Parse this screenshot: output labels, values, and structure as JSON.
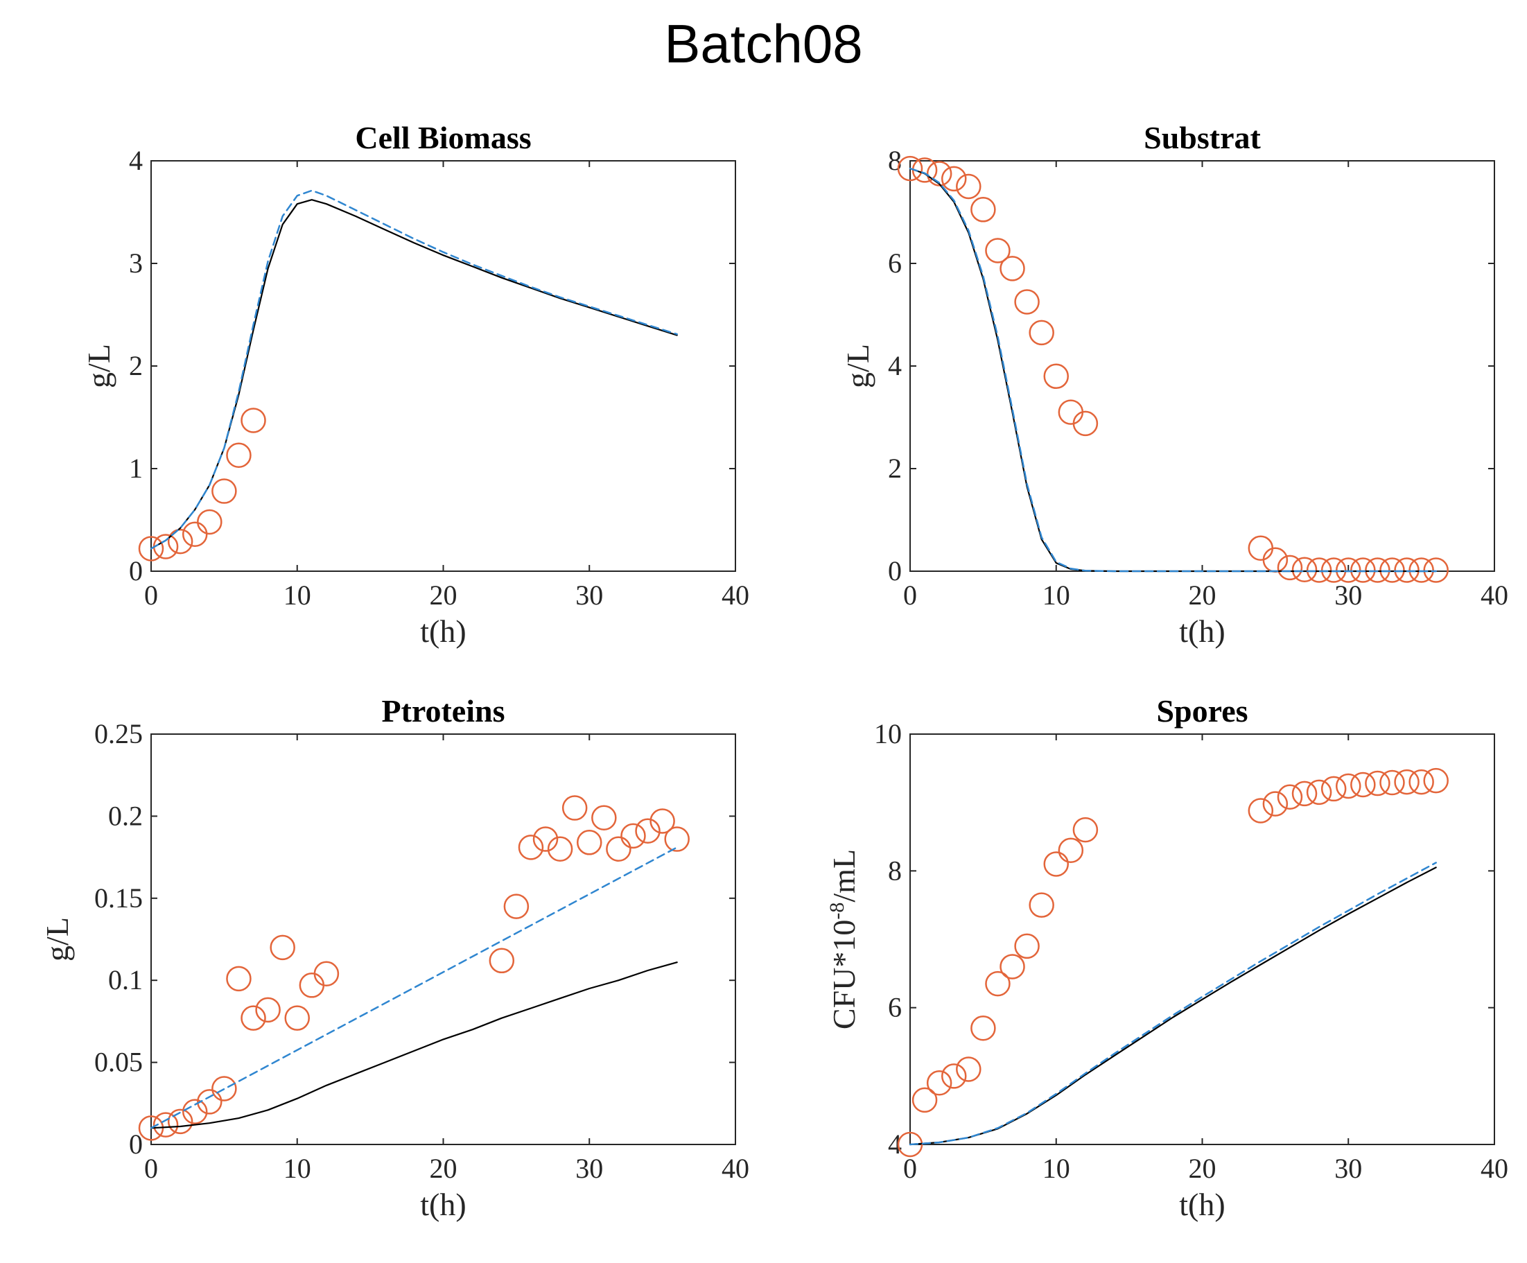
{
  "figure": {
    "title": "Batch08"
  },
  "style": {
    "observed_color": "#e3653a",
    "model_solid_color": "#000000",
    "model_dashed_color": "#2f86d0",
    "axis_color": "#262626"
  },
  "chart_data": [
    {
      "type": "line",
      "title": "Cell Biomass",
      "xlabel": "t(h)",
      "ylabel": "g/L",
      "xlim": [
        0,
        40
      ],
      "ylim": [
        0,
        4
      ],
      "xticks": [
        0,
        10,
        20,
        30,
        40
      ],
      "yticks": [
        0,
        1,
        2,
        3,
        4
      ],
      "ytick_labels": [
        "0",
        "1",
        "2",
        "3",
        "4"
      ],
      "grid": false,
      "legend": "none",
      "series": [
        {
          "style": "markers",
          "x": [
            0,
            1,
            2,
            3,
            4,
            5,
            6,
            7
          ],
          "y": [
            0.22,
            0.24,
            0.29,
            0.36,
            0.48,
            0.78,
            1.13,
            1.47
          ]
        },
        {
          "style": "solid",
          "x": [
            0,
            1,
            2,
            3,
            4,
            5,
            6,
            7,
            8,
            9,
            10,
            11,
            12,
            14,
            16,
            18,
            20,
            22,
            24,
            26,
            28,
            30,
            32,
            34,
            36
          ],
          "y": [
            0.22,
            0.3,
            0.42,
            0.6,
            0.84,
            1.2,
            1.72,
            2.35,
            2.95,
            3.38,
            3.58,
            3.62,
            3.58,
            3.46,
            3.33,
            3.2,
            3.08,
            2.97,
            2.86,
            2.76,
            2.66,
            2.57,
            2.48,
            2.39,
            2.3
          ]
        },
        {
          "style": "dashed",
          "x": [
            0,
            1,
            2,
            3,
            4,
            5,
            6,
            7,
            8,
            9,
            10,
            11,
            12,
            14,
            16,
            18,
            20,
            22,
            24,
            26,
            28,
            30,
            32,
            34,
            36
          ],
          "y": [
            0.22,
            0.3,
            0.42,
            0.6,
            0.84,
            1.2,
            1.75,
            2.4,
            3.02,
            3.46,
            3.66,
            3.71,
            3.66,
            3.52,
            3.38,
            3.24,
            3.11,
            2.99,
            2.88,
            2.77,
            2.67,
            2.58,
            2.49,
            2.4,
            2.31
          ]
        }
      ]
    },
    {
      "type": "line",
      "title": "Substrat",
      "xlabel": "t(h)",
      "ylabel": "g/L",
      "xlim": [
        0,
        40
      ],
      "ylim": [
        0,
        8
      ],
      "xticks": [
        0,
        10,
        20,
        30,
        40
      ],
      "yticks": [
        0,
        2,
        4,
        6,
        8
      ],
      "ytick_labels": [
        "0",
        "2",
        "4",
        "6",
        "8"
      ],
      "grid": false,
      "legend": "none",
      "series": [
        {
          "style": "markers",
          "x": [
            0,
            1,
            2,
            3,
            4,
            5,
            6,
            7,
            8,
            9,
            10,
            11,
            12,
            24,
            25,
            26,
            27,
            28,
            29,
            30,
            31,
            32,
            33,
            34,
            35,
            36
          ],
          "y": [
            7.85,
            7.82,
            7.75,
            7.65,
            7.5,
            7.05,
            6.25,
            5.9,
            5.25,
            4.65,
            3.8,
            3.1,
            2.88,
            0.45,
            0.22,
            0.07,
            0.03,
            0.02,
            0.02,
            0.02,
            0.02,
            0.02,
            0.02,
            0.02,
            0.02,
            0.02
          ]
        },
        {
          "style": "solid",
          "x": [
            0,
            1,
            2,
            3,
            4,
            5,
            6,
            7,
            8,
            9,
            10,
            11,
            12,
            14,
            16,
            20,
            24,
            28,
            32,
            36
          ],
          "y": [
            7.85,
            7.75,
            7.55,
            7.2,
            6.6,
            5.7,
            4.5,
            3.1,
            1.65,
            0.62,
            0.16,
            0.04,
            0.01,
            0.0,
            0.0,
            0.0,
            0.0,
            0.0,
            0.0,
            0.0
          ]
        },
        {
          "style": "dashed",
          "x": [
            0,
            1,
            2,
            3,
            4,
            5,
            6,
            7,
            8,
            9,
            10,
            11,
            12,
            14,
            16,
            20,
            24,
            28,
            32,
            36
          ],
          "y": [
            7.85,
            7.76,
            7.57,
            7.23,
            6.64,
            5.75,
            4.57,
            3.16,
            1.7,
            0.66,
            0.18,
            0.05,
            0.01,
            0.0,
            0.0,
            0.0,
            0.0,
            0.0,
            0.0,
            0.0
          ]
        }
      ]
    },
    {
      "type": "line",
      "title": "Ptroteins",
      "xlabel": "t(h)",
      "ylabel": "g/L",
      "xlim": [
        0,
        40
      ],
      "ylim": [
        0,
        0.25
      ],
      "xticks": [
        0,
        10,
        20,
        30,
        40
      ],
      "yticks": [
        0,
        0.05,
        0.1,
        0.15,
        0.2,
        0.25
      ],
      "ytick_labels": [
        "0",
        "0.05",
        "0.1",
        "0.15",
        "0.2",
        "0.25"
      ],
      "grid": false,
      "legend": "none",
      "series": [
        {
          "style": "markers",
          "x": [
            0,
            1,
            2,
            3,
            4,
            5,
            6,
            7,
            8,
            9,
            10,
            11,
            12,
            24,
            25,
            26,
            27,
            28,
            29,
            30,
            31,
            32,
            33,
            34,
            35,
            36
          ],
          "y": [
            0.01,
            0.012,
            0.014,
            0.02,
            0.026,
            0.034,
            0.101,
            0.077,
            0.082,
            0.12,
            0.077,
            0.097,
            0.104,
            0.112,
            0.145,
            0.181,
            0.186,
            0.18,
            0.205,
            0.184,
            0.199,
            0.18,
            0.188,
            0.191,
            0.197,
            0.186
          ]
        },
        {
          "style": "solid",
          "x": [
            0,
            2,
            4,
            6,
            8,
            10,
            12,
            14,
            16,
            18,
            20,
            22,
            24,
            26,
            28,
            30,
            32,
            34,
            36
          ],
          "y": [
            0.01,
            0.011,
            0.013,
            0.016,
            0.021,
            0.028,
            0.036,
            0.043,
            0.05,
            0.057,
            0.064,
            0.07,
            0.077,
            0.083,
            0.089,
            0.095,
            0.1,
            0.106,
            0.111
          ]
        },
        {
          "style": "dashed",
          "x": [
            0,
            36
          ],
          "y": [
            0.01,
            0.181
          ]
        }
      ]
    },
    {
      "type": "line",
      "title": "Spores",
      "xlabel": "t(h)",
      "ylabel": "CFU*10-8/mL",
      "ylabel_parts": [
        "CFU*10",
        "-8",
        "/mL"
      ],
      "xlim": [
        0,
        40
      ],
      "ylim": [
        4,
        10
      ],
      "xticks": [
        0,
        10,
        20,
        30,
        40
      ],
      "yticks": [
        4,
        6,
        8,
        10
      ],
      "ytick_labels": [
        "4",
        "6",
        "8",
        "10"
      ],
      "grid": false,
      "legend": "none",
      "series": [
        {
          "style": "markers",
          "x": [
            0,
            1,
            2,
            3,
            4,
            5,
            6,
            7,
            8,
            9,
            10,
            11,
            12,
            24,
            25,
            26,
            27,
            28,
            29,
            30,
            31,
            32,
            33,
            34,
            35,
            36
          ],
          "y": [
            4.0,
            4.65,
            4.9,
            5.0,
            5.1,
            5.7,
            6.35,
            6.6,
            6.9,
            7.5,
            8.1,
            8.3,
            8.6,
            8.88,
            8.98,
            9.08,
            9.13,
            9.15,
            9.2,
            9.24,
            9.26,
            9.28,
            9.29,
            9.3,
            9.3,
            9.32
          ]
        },
        {
          "style": "solid",
          "x": [
            0,
            2,
            4,
            6,
            8,
            10,
            12,
            14,
            16,
            18,
            20,
            22,
            24,
            26,
            28,
            30,
            32,
            34,
            36
          ],
          "y": [
            4.0,
            4.03,
            4.1,
            4.23,
            4.45,
            4.72,
            5.02,
            5.3,
            5.58,
            5.86,
            6.12,
            6.38,
            6.63,
            6.88,
            7.13,
            7.37,
            7.6,
            7.83,
            8.05
          ]
        },
        {
          "style": "dashed",
          "x": [
            0,
            2,
            4,
            6,
            8,
            10,
            12,
            14,
            16,
            18,
            20,
            22,
            24,
            26,
            28,
            30,
            32,
            34,
            36
          ],
          "y": [
            4.0,
            4.03,
            4.1,
            4.24,
            4.46,
            4.74,
            5.04,
            5.33,
            5.61,
            5.89,
            6.16,
            6.42,
            6.68,
            6.93,
            7.18,
            7.42,
            7.66,
            7.89,
            8.12
          ]
        }
      ]
    }
  ]
}
